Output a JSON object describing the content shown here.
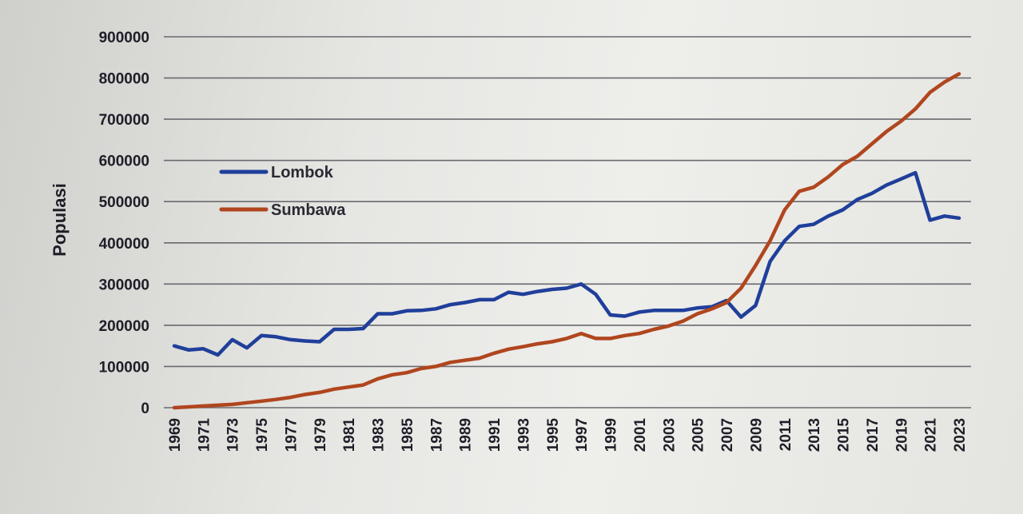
{
  "chart_data": {
    "type": "line",
    "title": "",
    "xlabel": "",
    "ylabel": "Populasi",
    "ylim": [
      0,
      900000
    ],
    "yticks": [
      "0",
      "100000",
      "200000",
      "300000",
      "400000",
      "500000",
      "600000",
      "700000",
      "800000",
      "900000"
    ],
    "x": [
      1969,
      1970,
      1971,
      1972,
      1973,
      1974,
      1975,
      1976,
      1977,
      1978,
      1979,
      1980,
      1981,
      1982,
      1983,
      1984,
      1985,
      1986,
      1987,
      1988,
      1989,
      1990,
      1991,
      1992,
      1993,
      1994,
      1995,
      1996,
      1997,
      1998,
      1999,
      2000,
      2001,
      2002,
      2003,
      2004,
      2005,
      2006,
      2007,
      2008,
      2009,
      2010,
      2011,
      2012,
      2013,
      2014,
      2015,
      2016,
      2017,
      2018,
      2019,
      2020,
      2021,
      2022,
      2023
    ],
    "xtick_labels": [
      "1969",
      "1971",
      "1973",
      "1975",
      "1977",
      "1979",
      "1981",
      "1983",
      "1985",
      "1987",
      "1989",
      "1991",
      "1993",
      "1995",
      "1997",
      "1999",
      "2001",
      "2003",
      "2005",
      "2007",
      "2009",
      "2011",
      "2013",
      "2015",
      "2017",
      "2019",
      "2021",
      "2023"
    ],
    "grid": true,
    "legend_position": "upper-left",
    "series": [
      {
        "name": "Lombok",
        "color": "#1f3f9a",
        "values": [
          150000,
          140000,
          143000,
          128000,
          165000,
          145000,
          175000,
          172000,
          165000,
          162000,
          160000,
          190000,
          190000,
          192000,
          228000,
          228000,
          235000,
          236000,
          240000,
          250000,
          255000,
          262000,
          262000,
          280000,
          275000,
          282000,
          287000,
          290000,
          300000,
          275000,
          225000,
          222000,
          232000,
          236000,
          236000,
          236000,
          242000,
          245000,
          260000,
          220000,
          248000,
          355000,
          405000,
          440000,
          445000,
          465000,
          480000,
          505000,
          520000,
          540000,
          555000,
          570000,
          455000,
          465000,
          460000
        ]
      },
      {
        "name": "Sumbawa",
        "color": "#b0461e",
        "values": [
          0,
          2000,
          4000,
          6000,
          8000,
          12000,
          16000,
          20000,
          25000,
          32000,
          37000,
          45000,
          50000,
          55000,
          70000,
          80000,
          85000,
          95000,
          100000,
          110000,
          115000,
          120000,
          132000,
          142000,
          148000,
          155000,
          160000,
          168000,
          180000,
          168000,
          168000,
          175000,
          180000,
          190000,
          198000,
          210000,
          228000,
          240000,
          255000,
          290000,
          345000,
          405000,
          480000,
          525000,
          535000,
          560000,
          590000,
          610000,
          640000,
          670000,
          695000,
          725000,
          765000,
          790000,
          810000
        ]
      }
    ]
  }
}
